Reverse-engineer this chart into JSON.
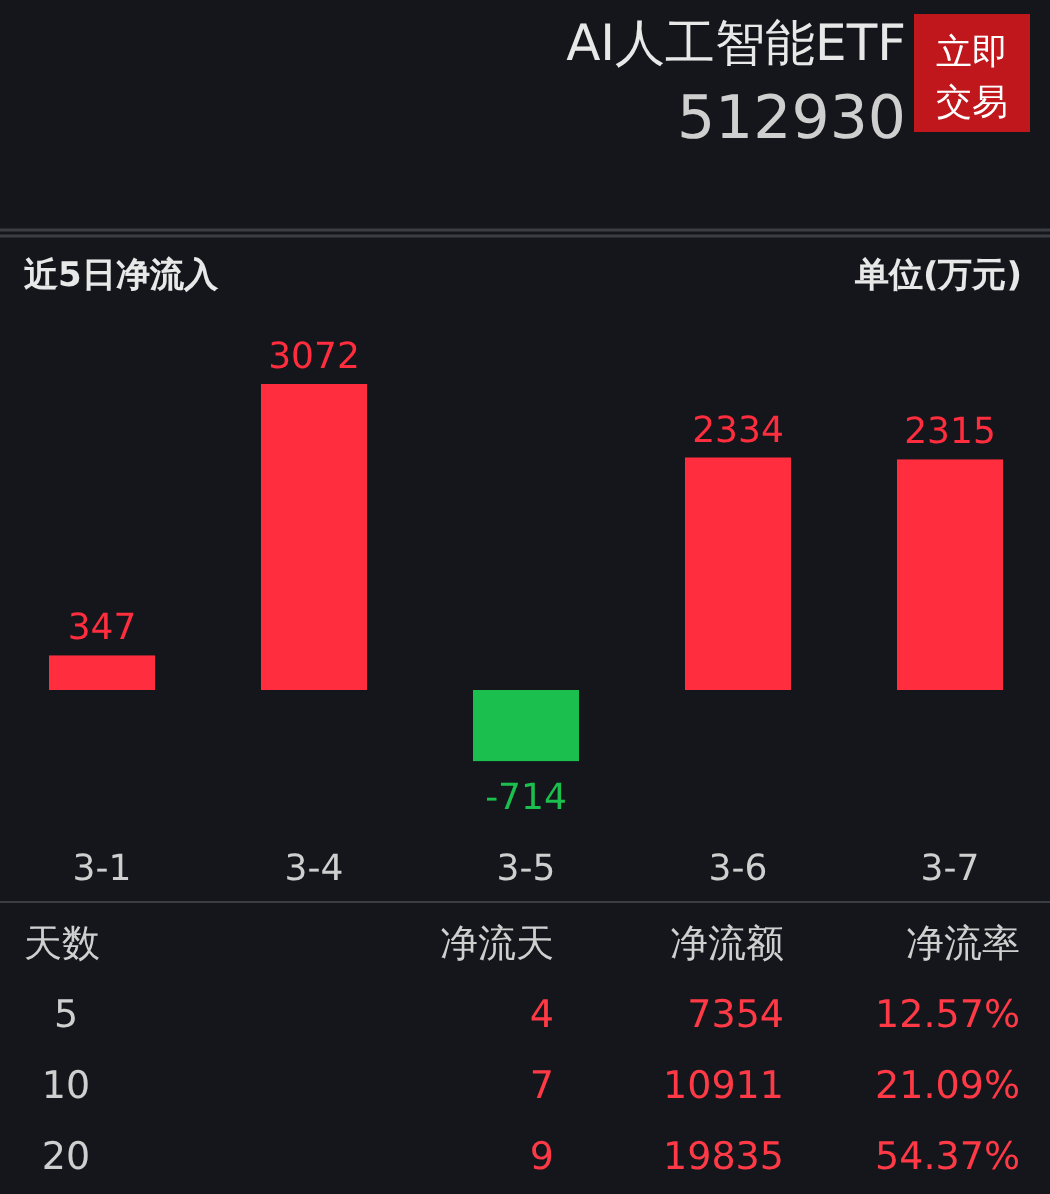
{
  "chart_data": [
    {
      "type": "bar",
      "title": "近5日净流入",
      "ylabel": "单位(万元)",
      "categories": [
        "3-1",
        "3-4",
        "3-5",
        "3-6",
        "3-7"
      ],
      "values": [
        347,
        3072,
        -714,
        2334,
        2315
      ],
      "colors": [
        "#ff2d3d",
        "#ff2d3d",
        "#1bbf4e",
        "#ff2d3d",
        "#ff2d3d"
      ],
      "data_labels": true,
      "annotations": [
        "AI人工智能ETF",
        "512930",
        "立即交易"
      ]
    },
    {
      "type": "other",
      "annotations": [
        "天数",
        "净流天",
        "净流额",
        "净流率",
        "5",
        "4",
        "7354",
        "12.57%",
        "10",
        "7",
        "10911",
        "21.09%",
        "20",
        "9",
        "19835",
        "54.37%"
      ]
    }
  ]
}
